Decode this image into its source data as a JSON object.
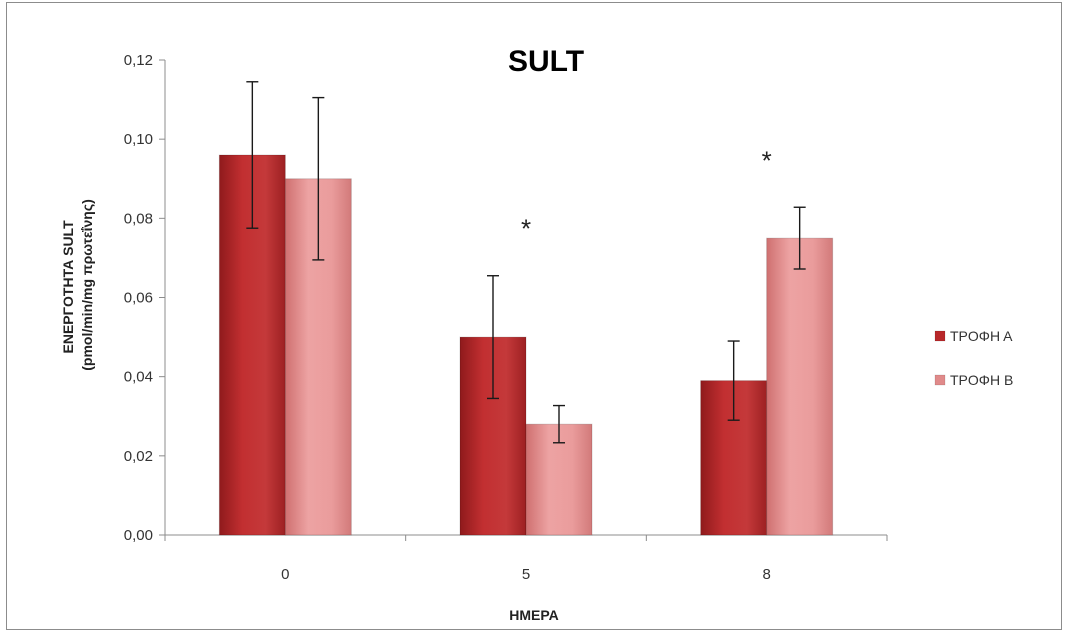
{
  "chart_data": {
    "type": "bar",
    "title": "SULT",
    "xlabel": "ΗΜΕΡΑ",
    "ylabel_line1": "ΕΝΕΡΓΟΤΗΤΑ SULT",
    "ylabel_line2": "(pmol/min/mg πρωτεΐνης)",
    "categories": [
      "0",
      "5",
      "8"
    ],
    "ylim": [
      0,
      0.12
    ],
    "yticks": [
      "0,00",
      "0,02",
      "0,04",
      "0,06",
      "0,08",
      "0,10",
      "0,12"
    ],
    "series": [
      {
        "name": "ΤΡΟΦΗ Α",
        "color": "#b8282a",
        "values": [
          0.096,
          0.05,
          0.039
        ],
        "errors": [
          0.0185,
          0.0155,
          0.01
        ]
      },
      {
        "name": "ΤΡΟΦΗ Β",
        "color": "#e08a8a",
        "values": [
          0.09,
          0.028,
          0.075
        ],
        "errors": [
          0.0205,
          0.0047,
          0.0078
        ]
      }
    ],
    "significance": [
      "",
      "*",
      "*"
    ],
    "legend_position": "right",
    "grid": false
  }
}
